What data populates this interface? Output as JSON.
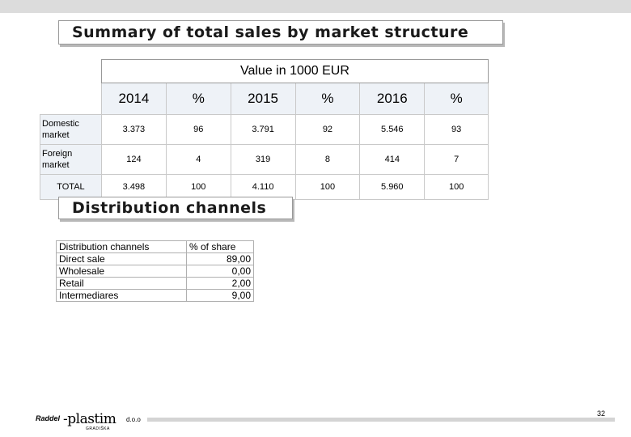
{
  "title1": "Summary of total sales by market structure",
  "title2": "Distribution channels",
  "sales_table": {
    "caption": "Value in 1000 EUR",
    "columns": [
      "2014",
      "%",
      "2015",
      "%",
      "2016",
      "%"
    ],
    "rows": [
      {
        "label": "Domestic market",
        "values": [
          "3.373",
          "96",
          "3.791",
          "92",
          "5.546",
          "93"
        ]
      },
      {
        "label": "Foreign market",
        "values": [
          "124",
          "4",
          "319",
          "8",
          "414",
          "7"
        ]
      },
      {
        "label": "TOTAL",
        "values": [
          "3.498",
          "100",
          "4.110",
          "100",
          "5.960",
          "100"
        ]
      }
    ]
  },
  "distribution_table": {
    "headers": [
      "Distribution channels",
      "% of share"
    ],
    "rows": [
      [
        "Direct sale",
        "89,00"
      ],
      [
        "Wholesale",
        "0,00"
      ],
      [
        "Retail",
        "2,00"
      ],
      [
        "Intermediares",
        "9,00"
      ]
    ]
  },
  "footer": {
    "page_number": "32",
    "logo": {
      "prefix": "Raddel",
      "brand": "-plastim",
      "suffix": "d.o.o",
      "tagline": "GRADIŠKA"
    }
  }
}
